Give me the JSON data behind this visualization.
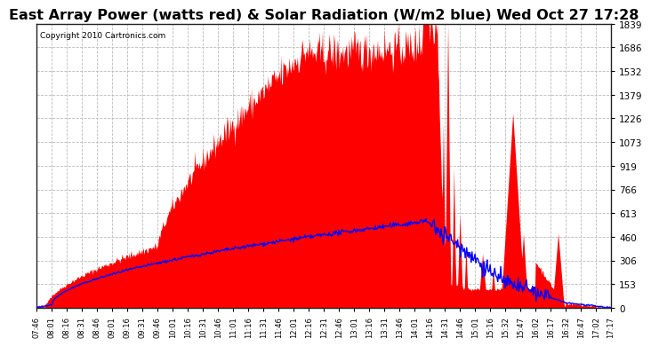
{
  "title": "East Array Power (watts red) & Solar Radiation (W/m2 blue) Wed Oct 27 17:28",
  "copyright": "Copyright 2010 Cartronics.com",
  "yticks": [
    0.0,
    153.2,
    306.5,
    459.7,
    612.9,
    766.2,
    919.4,
    1072.6,
    1225.9,
    1379.1,
    1532.3,
    1685.5,
    1838.8
  ],
  "ymax": 1838.8,
  "ymin": 0.0,
  "bg_color": "#ffffff",
  "grid_color": "#aaaaaa",
  "red_color": "#ff0000",
  "blue_color": "#0000ff",
  "title_fontsize": 11.5,
  "xtick_labels": [
    "07:46",
    "08:01",
    "08:16",
    "08:31",
    "08:46",
    "09:01",
    "09:16",
    "09:31",
    "09:46",
    "10:01",
    "10:16",
    "10:31",
    "10:46",
    "11:01",
    "11:16",
    "11:31",
    "11:46",
    "12:01",
    "12:16",
    "12:31",
    "12:46",
    "13:01",
    "13:16",
    "13:31",
    "13:46",
    "14:01",
    "14:16",
    "14:31",
    "14:46",
    "15:01",
    "15:16",
    "15:32",
    "15:47",
    "16:02",
    "16:17",
    "16:32",
    "16:47",
    "17:02",
    "17:17"
  ]
}
